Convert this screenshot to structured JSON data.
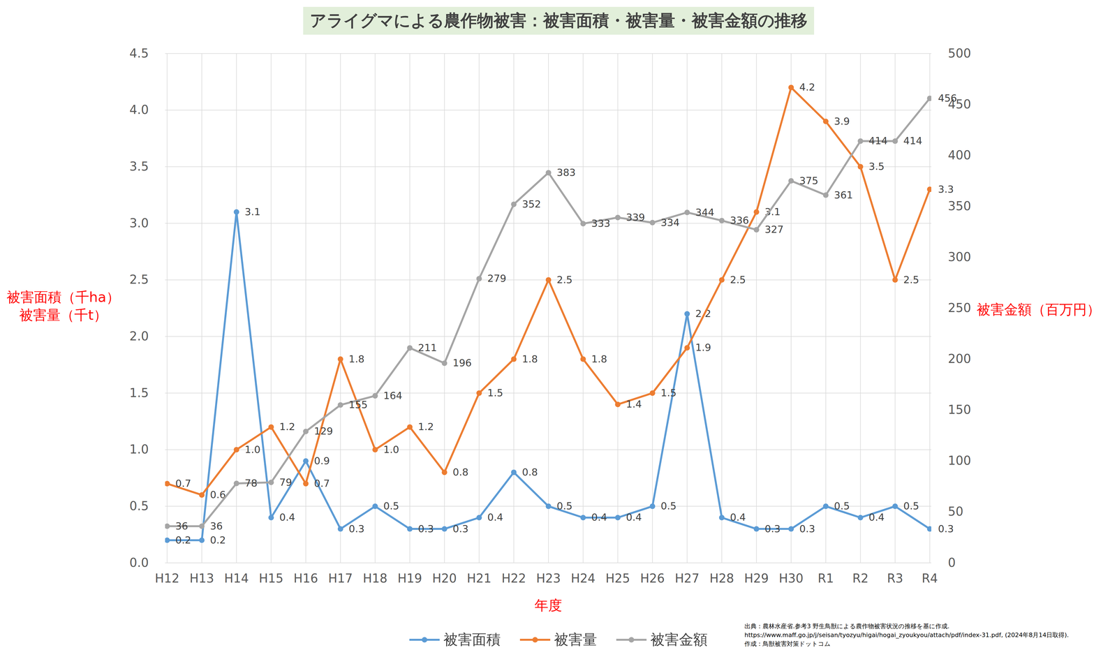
{
  "chart_data": {
    "type": "line",
    "title": "アライグマによる農作物被害：被害面積・被害量・被害金額の推移",
    "xlabel": "年度",
    "ylabel": [
      "被害面積（千ha）",
      "被害量（千t）"
    ],
    "y2label": "被害金額（百万円）",
    "caption": [
      "出典：農林水産省.参考3 野生鳥獣による農作物被害状況の推移を基に作成.",
      "https://www.maff.go.jp/j/seisan/tyozyu/higai/hogai_zyoukyou/attach/pdf/index-31.pdf, (2024年8月14日取得).",
      "作成：鳥獣被害対策ドットコム"
    ],
    "categories": [
      "H12",
      "H13",
      "H14",
      "H15",
      "H16",
      "H17",
      "H18",
      "H19",
      "H20",
      "H21",
      "H22",
      "H23",
      "H24",
      "H25",
      "H26",
      "H27",
      "H28",
      "H29",
      "H30",
      "R1",
      "R2",
      "R3",
      "R4"
    ],
    "series": [
      {
        "name": "被害面積",
        "color": "#5b9bd5",
        "axis": "y",
        "values": [
          0.2,
          0.2,
          3.1,
          0.4,
          0.9,
          0.3,
          0.5,
          0.3,
          0.3,
          0.4,
          0.8,
          0.5,
          0.4,
          0.4,
          0.5,
          2.2,
          0.4,
          0.3,
          0.3,
          0.5,
          0.4,
          0.5,
          0.3
        ],
        "value_labels": [
          "0.2",
          "0.2",
          "3.1",
          "0.4",
          "0.9",
          "0.3",
          "0.5",
          "0.3",
          "0.3",
          "0.4",
          "0.8",
          "0.5",
          "0.4",
          "0.4",
          "0.5",
          "2.2",
          "0.4",
          "0.3",
          "0.3",
          "0.5",
          "0.4",
          "0.5",
          "0.3"
        ]
      },
      {
        "name": "被害量",
        "color": "#ed7d31",
        "axis": "y",
        "values": [
          0.7,
          0.6,
          1.0,
          1.2,
          0.7,
          1.8,
          1.0,
          1.2,
          0.8,
          1.5,
          1.8,
          2.5,
          1.8,
          1.4,
          1.5,
          1.9,
          2.5,
          3.1,
          4.2,
          3.9,
          3.5,
          2.5,
          3.3
        ],
        "value_labels": [
          "0.7",
          "0.6",
          "1.0",
          "1.2",
          "0.7",
          "1.8",
          "1.0",
          "1.2",
          "0.8",
          "1.5",
          "1.8",
          "2.5",
          "1.8",
          "1.4",
          "1.5",
          "1.9",
          "2.5",
          "3.1",
          "4.2",
          "3.9",
          "3.5",
          "2.5",
          "3.3"
        ]
      },
      {
        "name": "被害金額",
        "color": "#a5a5a5",
        "axis": "y2",
        "values": [
          36,
          36,
          78,
          79,
          129,
          155,
          164,
          211,
          196,
          279,
          352,
          383,
          333,
          339,
          334,
          344,
          336,
          327,
          375,
          361,
          414,
          414,
          456
        ]
      }
    ],
    "ylim": [
      0,
      4.5
    ],
    "yticks": [
      {
        "value": 0,
        "label": "0.0"
      },
      {
        "value": 0.5,
        "label": "0.5"
      },
      {
        "value": 1,
        "label": "1.0"
      },
      {
        "value": 1.5,
        "label": "1.5"
      },
      {
        "value": 2,
        "label": "2.0"
      },
      {
        "value": 2.5,
        "label": "2.5"
      },
      {
        "value": 3,
        "label": "3.0"
      },
      {
        "value": 3.5,
        "label": "3.5"
      },
      {
        "value": 4,
        "label": "4.0"
      },
      {
        "value": 4.5,
        "label": "4.5"
      }
    ],
    "y2lim": [
      0,
      500
    ],
    "y2ticks": [
      0,
      50,
      100,
      150,
      200,
      250,
      300,
      350,
      400,
      450,
      500
    ],
    "grid": true,
    "legend": "bottom",
    "data_labels": true,
    "marker": "circle",
    "line_style": "solid"
  }
}
